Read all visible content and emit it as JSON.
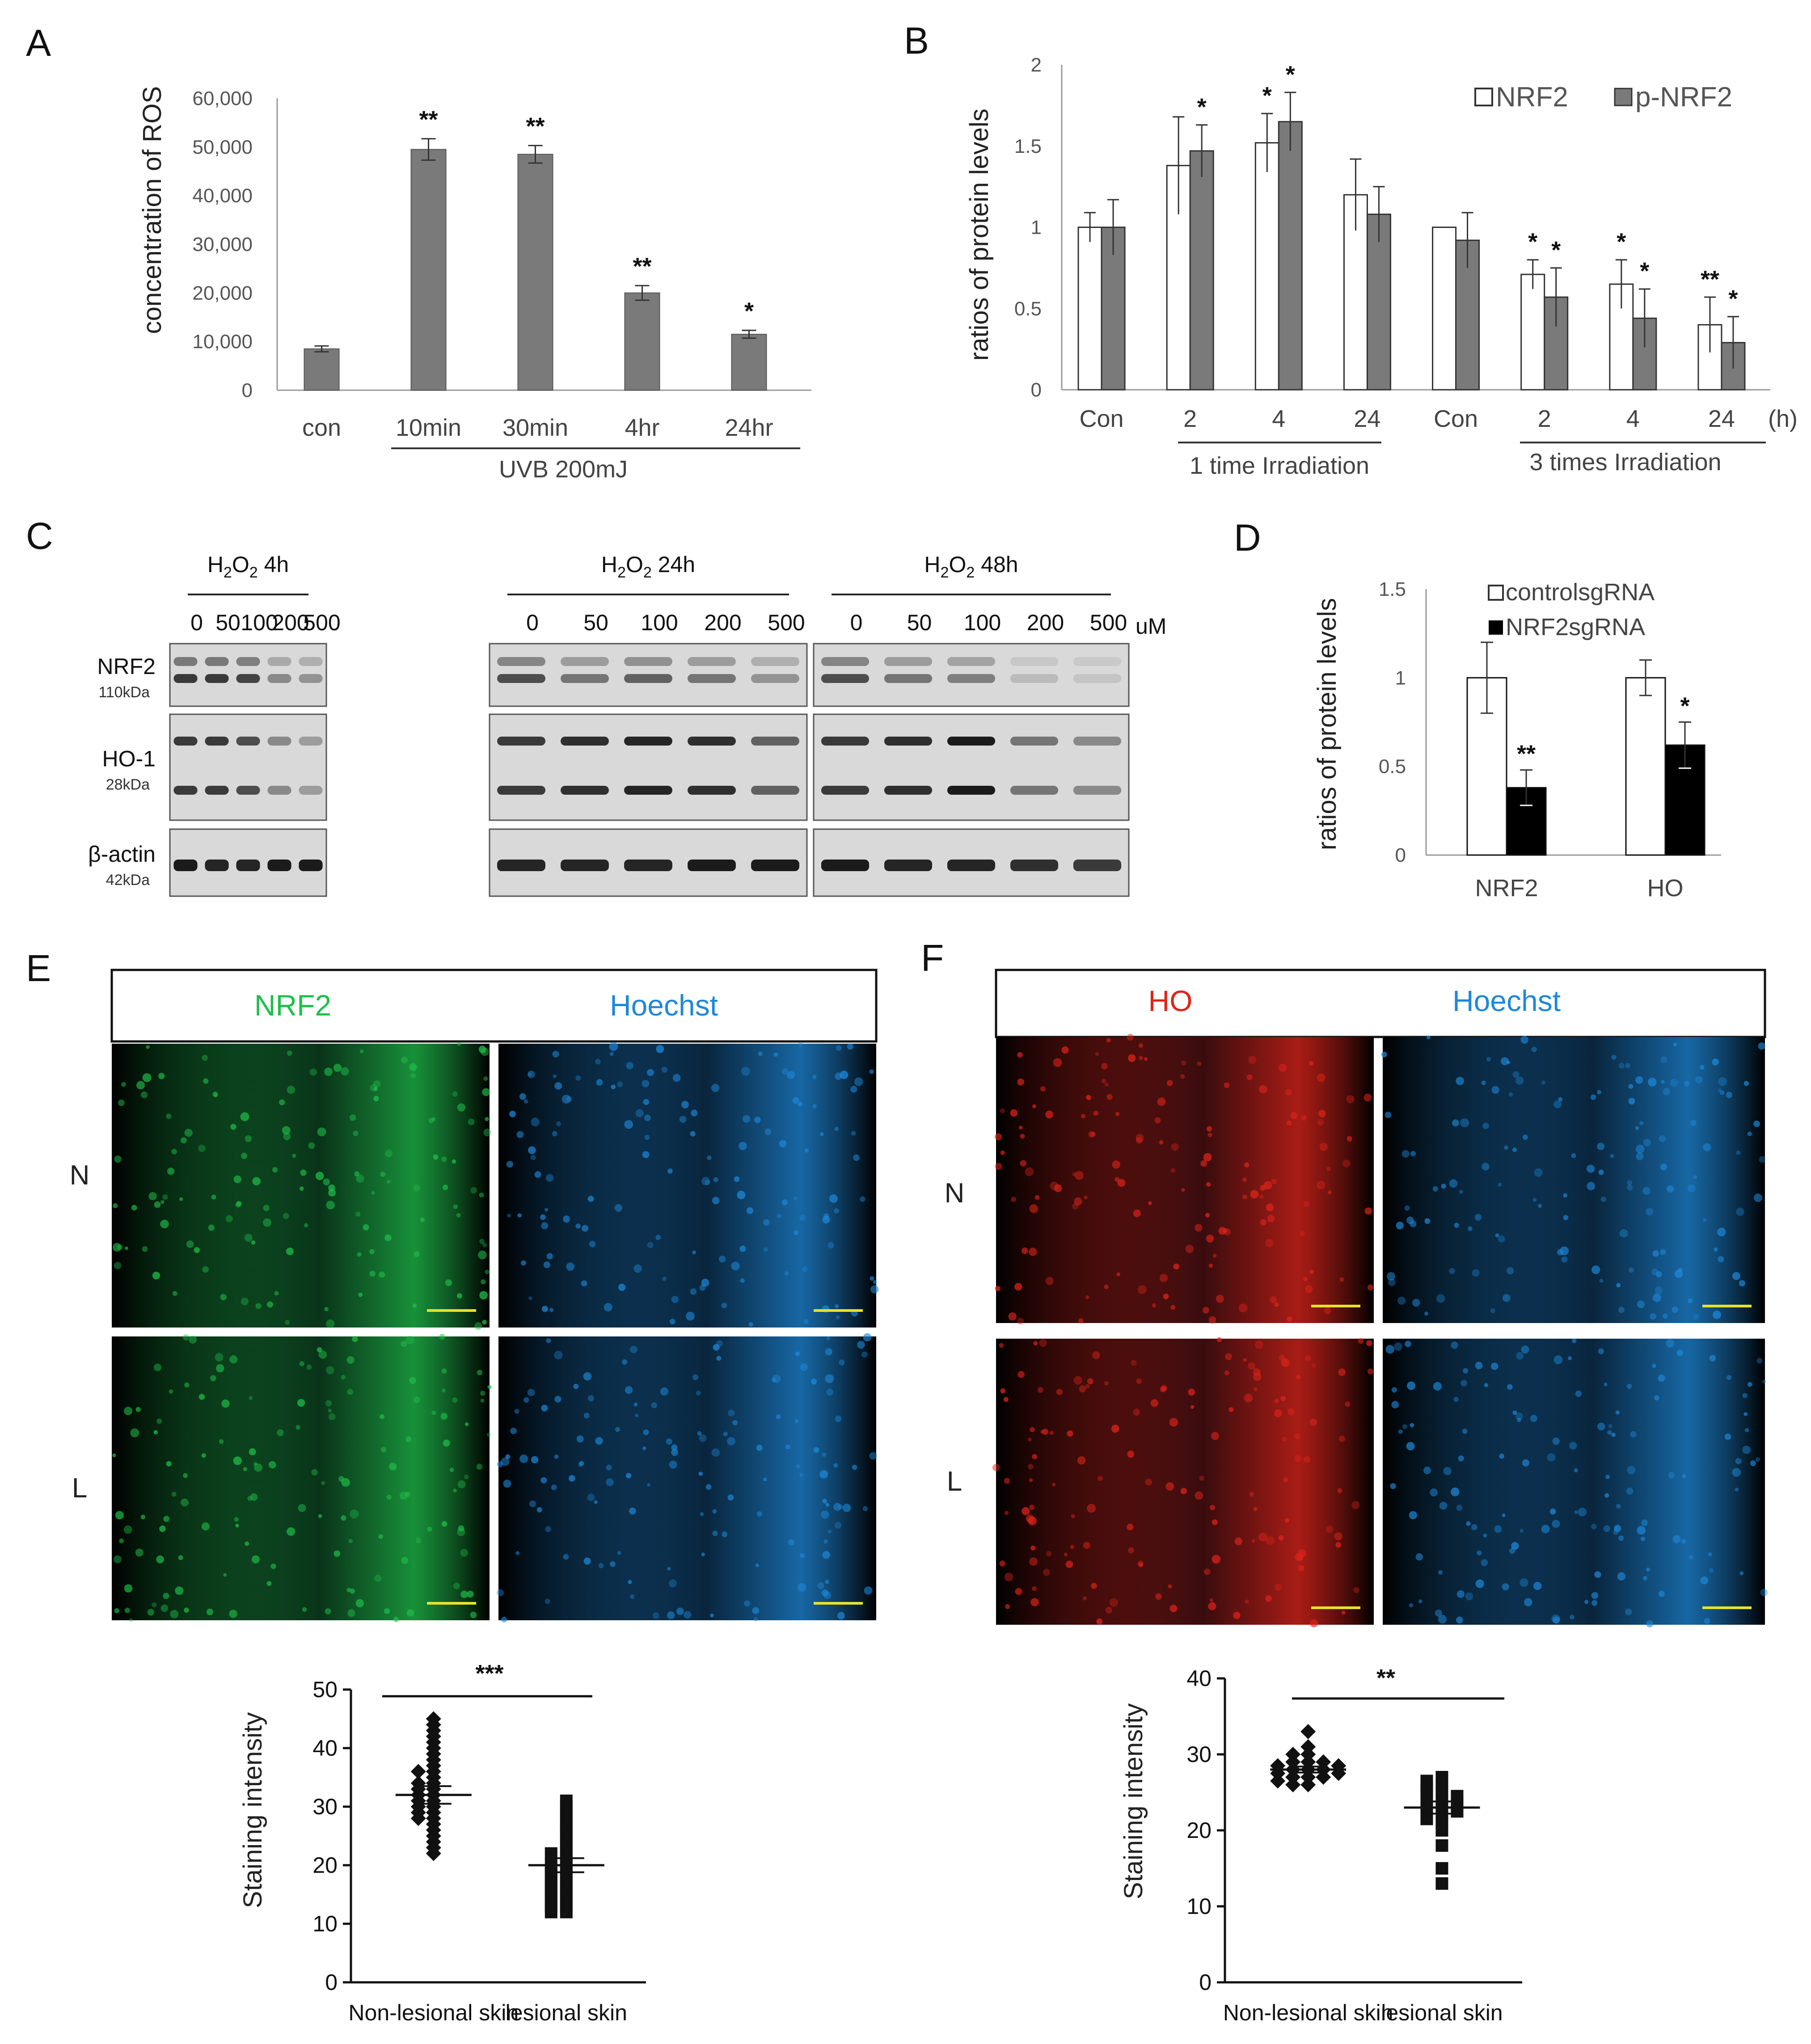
{
  "panels": {
    "A": {
      "label": "A",
      "ylabel": "concentration of ROS",
      "group_label": "UVB 200mJ",
      "colors": {
        "bar": "#7a7a7a"
      },
      "chart": {
        "type": "bar",
        "categories": [
          "con",
          "10min",
          "30min",
          "4hr",
          "24hr"
        ],
        "values": [
          8500,
          49500,
          48500,
          20000,
          11500
        ],
        "errors": [
          600,
          2200,
          1800,
          1500,
          800
        ],
        "sig": [
          "",
          "**",
          "**",
          "**",
          "*"
        ],
        "ylim": [
          0,
          60000
        ],
        "yticks": [
          "0",
          "10,000",
          "20,000",
          "30,000",
          "40,000",
          "50,000",
          "60,000"
        ]
      }
    },
    "B": {
      "label": "B",
      "ylabel": "ratios of protein levels",
      "unit_label": "(h)",
      "group_labels": [
        "1 time Irradiation",
        "3 times Irradiation"
      ],
      "colors": {
        "NRF2": "#ffffff",
        "p-NRF2": "#7a7a7a"
      },
      "chart": {
        "type": "bar",
        "categories": [
          "Con",
          "2",
          "4",
          "24",
          "Con",
          "2",
          "4",
          "24"
        ],
        "series": [
          {
            "name": "NRF2",
            "values": [
              1.0,
              1.38,
              1.52,
              1.2,
              1.0,
              0.71,
              0.65,
              0.4
            ],
            "errors": [
              0.09,
              0.3,
              0.18,
              0.22,
              0.0,
              0.09,
              0.15,
              0.17
            ],
            "sig": [
              "",
              "",
              "*",
              "",
              "",
              "*",
              "*",
              "**"
            ]
          },
          {
            "name": "p-NRF2",
            "values": [
              1.0,
              1.47,
              1.65,
              1.08,
              0.92,
              0.57,
              0.44,
              0.29
            ],
            "errors": [
              0.17,
              0.16,
              0.18,
              0.17,
              0.17,
              0.18,
              0.18,
              0.16
            ],
            "sig": [
              "",
              "*",
              "*",
              "",
              "",
              "*",
              "*",
              "*"
            ]
          }
        ],
        "ylim": [
          0,
          2
        ],
        "yticks": [
          "0",
          "0.5",
          "1",
          "1.5",
          "2"
        ]
      }
    },
    "C": {
      "label": "C",
      "headers": [
        {
          "base": "H",
          "sub1": "2",
          "mid": "O",
          "sub2": "2",
          "time": " 4h"
        },
        {
          "base": "H",
          "sub1": "2",
          "mid": "O",
          "sub2": "2",
          "time": " 24h"
        },
        {
          "base": "H",
          "sub1": "2",
          "mid": "O",
          "sub2": "2",
          "time": " 48h"
        }
      ],
      "doses": [
        "0",
        "50",
        "100",
        "200",
        "500"
      ],
      "unit": "uM",
      "rows": [
        {
          "name": "NRF2",
          "size": "110kDa",
          "intensity": [
            [
              0.8,
              0.8,
              0.75,
              0.4,
              0.35
            ],
            [
              0.7,
              0.5,
              0.6,
              0.5,
              0.35
            ],
            [
              0.7,
              0.5,
              0.45,
              0.15,
              0.1
            ]
          ]
        },
        {
          "name": "HO-1",
          "size": "28kDa",
          "intensity": [
            [
              0.8,
              0.8,
              0.7,
              0.4,
              0.3
            ],
            [
              0.8,
              0.85,
              0.9,
              0.85,
              0.6
            ],
            [
              0.8,
              0.85,
              0.95,
              0.5,
              0.4
            ]
          ]
        },
        {
          "name": "β-actin",
          "size": "42kDa",
          "intensity": [
            [
              0.95,
              0.9,
              0.9,
              0.95,
              0.95
            ],
            [
              0.9,
              0.9,
              0.9,
              0.95,
              0.95
            ],
            [
              0.95,
              0.9,
              0.9,
              0.85,
              0.8
            ]
          ]
        }
      ]
    },
    "D": {
      "label": "D",
      "ylabel": "ratios of protein levels",
      "colors": {
        "controlsgRNA": "#ffffff",
        "NRF2sgRNA": "#000000"
      },
      "chart": {
        "type": "bar",
        "categories": [
          "NRF2",
          "HO"
        ],
        "series": [
          {
            "name": "controlsgRNA",
            "values": [
              1.0,
              1.0
            ],
            "errors": [
              0.2,
              0.1
            ],
            "sig": [
              "",
              ""
            ]
          },
          {
            "name": "NRF2sgRNA",
            "values": [
              0.38,
              0.62
            ],
            "errors": [
              0.1,
              0.13
            ],
            "sig": [
              "**",
              "*"
            ]
          }
        ],
        "ylim": [
          0,
          1.5
        ],
        "yticks": [
          "0",
          "0.5",
          "1",
          "1.5"
        ]
      }
    },
    "E": {
      "label": "E",
      "stain1": "NRF2",
      "stain2": "Hoechst",
      "rows": [
        "N",
        "L"
      ],
      "colors": {
        "stain1": "#1fbf4a",
        "stain2": "#1e88d8"
      }
    },
    "F": {
      "label": "F",
      "stain1": "HO",
      "stain2": "Hoechst",
      "rows": [
        "N",
        "L"
      ],
      "colors": {
        "stain1": "#e0241a",
        "stain2": "#1e88d8"
      }
    },
    "Escatter": {
      "ylabel": "Staining intensity",
      "sig": "***",
      "chart": {
        "type": "scatter",
        "categories": [
          "Non-lesional skin",
          "lesional skin"
        ],
        "series": [
          {
            "name": "Non-lesional skin",
            "marker": "diamond",
            "mean": 32,
            "sem": 1.5,
            "values": [
              45,
              44,
              43,
              42,
              41,
              40,
              39,
              38,
              37,
              36,
              36,
              35,
              34,
              34,
              33,
              33,
              32,
              32,
              31,
              31,
              30,
              30,
              29,
              29,
              28,
              28,
              27,
              26,
              25,
              24,
              23,
              22
            ]
          },
          {
            "name": "lesional skin",
            "marker": "square",
            "mean": 20,
            "sem": 1.2,
            "values": [
              31,
              30,
              29,
              28,
              27,
              26,
              25,
              24,
              23,
              22,
              22,
              21,
              20,
              20,
              19,
              19,
              18,
              18,
              17,
              17,
              16,
              16,
              15,
              15,
              14,
              14,
              13,
              13,
              12,
              12
            ]
          }
        ],
        "ylim": [
          0,
          50
        ],
        "yticks": [
          "0",
          "10",
          "20",
          "30",
          "40",
          "50"
        ]
      }
    },
    "Fscatter": {
      "ylabel": "Staining intensity",
      "sig": "**",
      "chart": {
        "type": "scatter",
        "categories": [
          "Non-lesional skin",
          "lesional skin"
        ],
        "series": [
          {
            "name": "Non-lesional skin",
            "marker": "diamond",
            "mean": 28,
            "sem": 0.4,
            "values": [
              33,
              31,
              30,
              30,
              29,
              29,
              29,
              28.5,
              28.5,
              28,
              28,
              28,
              27.5,
              27.5,
              27,
              27,
              27,
              26.5,
              26,
              26
            ]
          },
          {
            "name": "lesional skin",
            "marker": "square",
            "mean": 23,
            "sem": 0.8,
            "values": [
              27,
              26.5,
              26,
              25.5,
              25,
              25,
              24.5,
              24,
              24,
              23.5,
              23,
              23,
              22.5,
              22,
              21.5,
              21,
              20,
              18,
              15,
              13
            ]
          }
        ],
        "ylim": [
          0,
          40
        ],
        "yticks": [
          "0",
          "10",
          "20",
          "30",
          "40"
        ]
      }
    }
  }
}
